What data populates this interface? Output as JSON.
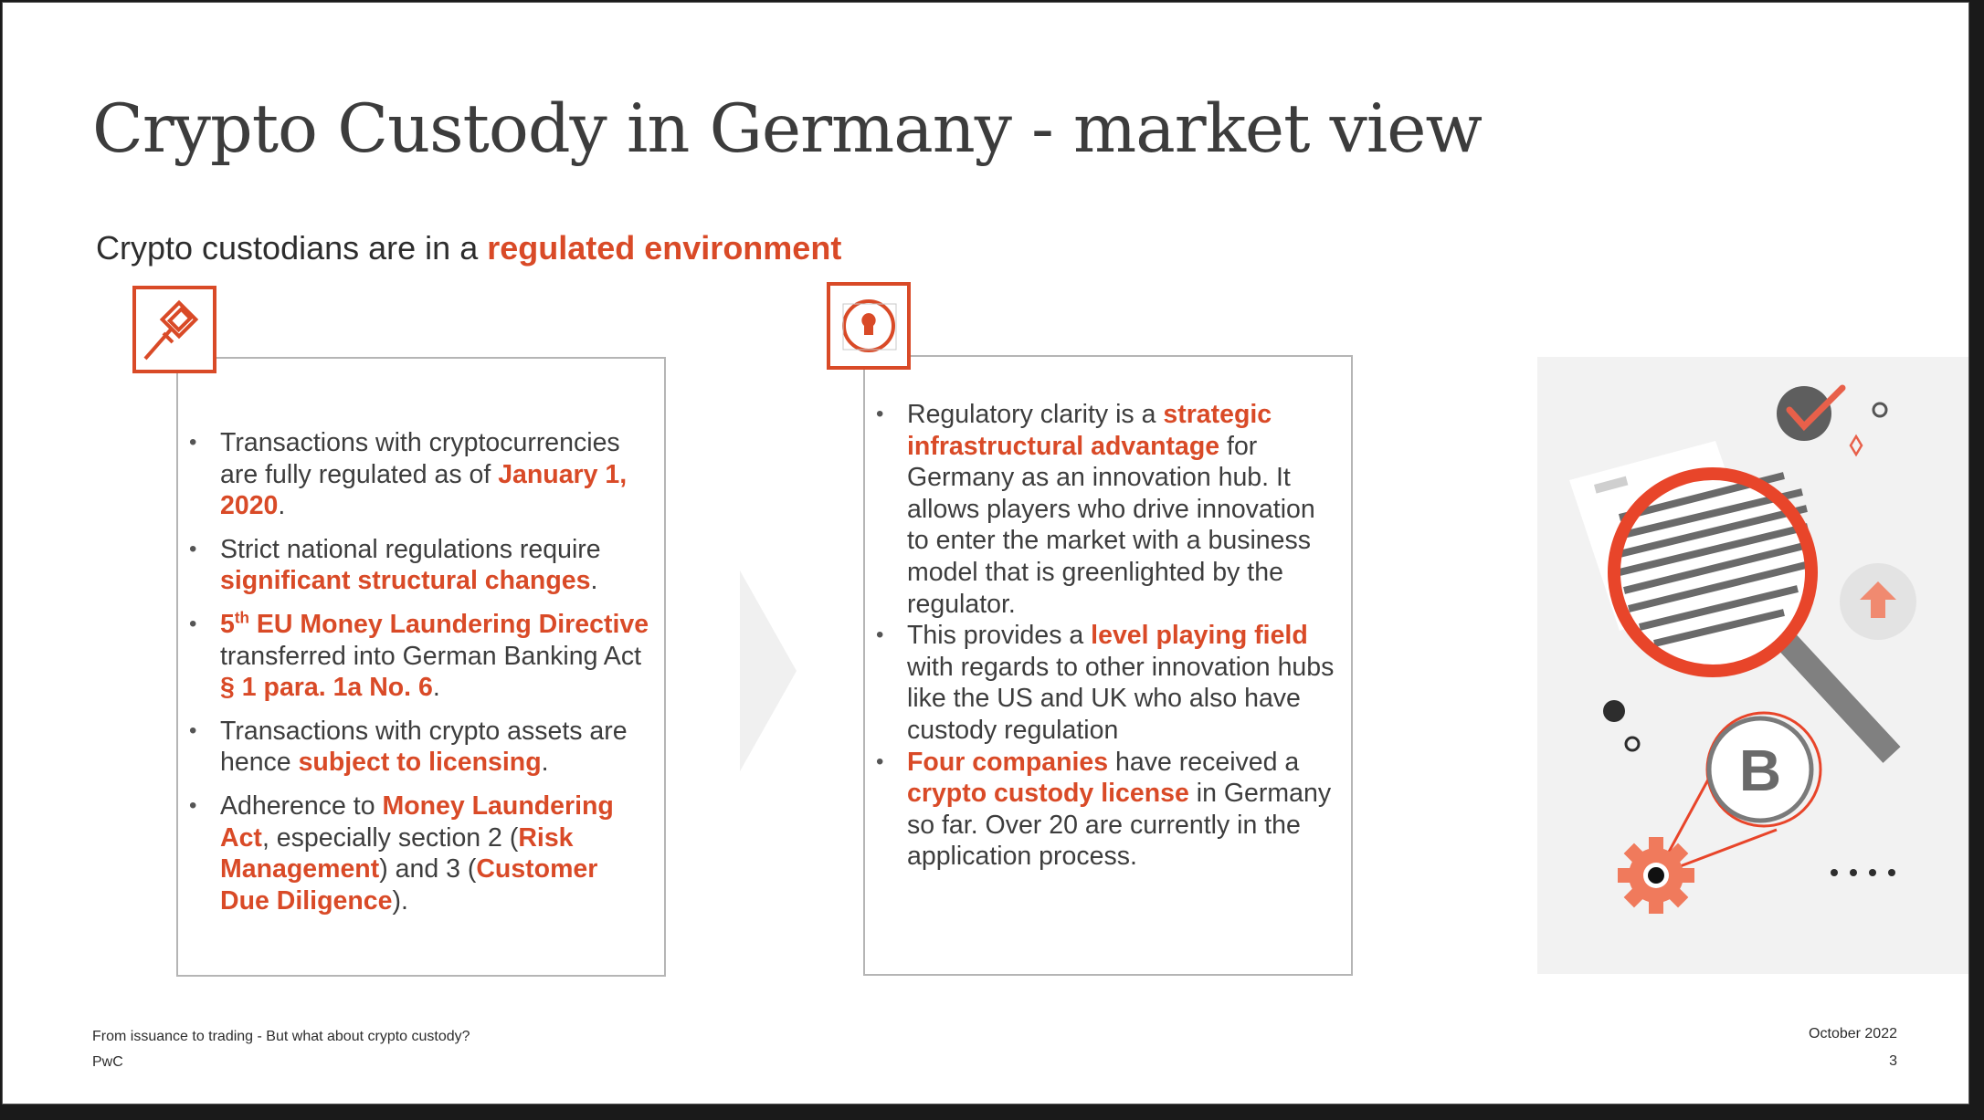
{
  "slide": {
    "title": "Crypto Custody in Germany - market view",
    "subtitle_plain": "Crypto custodians are in a ",
    "subtitle_highlight": "regulated environment"
  },
  "left_panel": {
    "icon": "gavel-icon",
    "bullets": [
      [
        {
          "t": "Transactions with cryptocurrencies are fully regulated as of "
        },
        {
          "t": "January 1, 2020",
          "hl": true
        },
        {
          "t": "."
        }
      ],
      [
        {
          "t": "Strict national regulations require "
        },
        {
          "t": "significant structural changes",
          "hl": true
        },
        {
          "t": "."
        }
      ],
      [
        {
          "t": "5",
          "hl": true
        },
        {
          "t": "th",
          "hl": true,
          "sup": true
        },
        {
          "t": " EU Money Laundering Directive",
          "hl": true
        },
        {
          "t": " transferred into German Banking Act "
        },
        {
          "t": "§ 1 para. 1a No. 6",
          "hl": true
        },
        {
          "t": "."
        }
      ],
      [
        {
          "t": "Transactions with crypto assets are hence "
        },
        {
          "t": "subject to licensing",
          "hl": true
        },
        {
          "t": "."
        }
      ],
      [
        {
          "t": "Adherence to "
        },
        {
          "t": "Money Laundering Act",
          "hl": true
        },
        {
          "t": ", especially section 2 ("
        },
        {
          "t": "Risk Management",
          "hl": true
        },
        {
          "t": ") and 3 ("
        },
        {
          "t": "Customer Due Diligence",
          "hl": true
        },
        {
          "t": ")."
        }
      ]
    ]
  },
  "right_panel": {
    "icon": "lightbulb-icon",
    "bullets": [
      [
        {
          "t": "Regulatory clarity is a "
        },
        {
          "t": "strategic infrastructural advantage",
          "hl": true
        },
        {
          "t": " for Germany as an innovation hub.  It allows players who drive innovation to enter the market with a business model that is greenlighted by the regulator."
        }
      ],
      [
        {
          "t": "This provides a "
        },
        {
          "t": "level playing field",
          "hl": true
        },
        {
          "t": " with regards to other innovation hubs like the US and UK who also have custody regulation"
        }
      ],
      [
        {
          "t": "Four companies",
          "hl": true
        },
        {
          "t": " have received a "
        },
        {
          "t": "crypto custody license",
          "hl": true
        },
        {
          "t": " in Germany so far. Over 20 are currently in the application process."
        }
      ]
    ]
  },
  "illustration": {
    "icons": [
      "magnifier-icon",
      "document-icon",
      "checkmark-icon",
      "upload-arrow-icon",
      "bitcoin-icon",
      "gear-icon"
    ]
  },
  "footer": {
    "presentation_title": "From issuance to trading - But what about crypto custody?",
    "company": "PwC",
    "date": "October 2022",
    "page_number": "3"
  },
  "colors": {
    "accent": "#d94a27",
    "text": "#3d3d3d",
    "panel_border": "#b5b5b5",
    "illustration_bg": "#f2f2f2"
  }
}
